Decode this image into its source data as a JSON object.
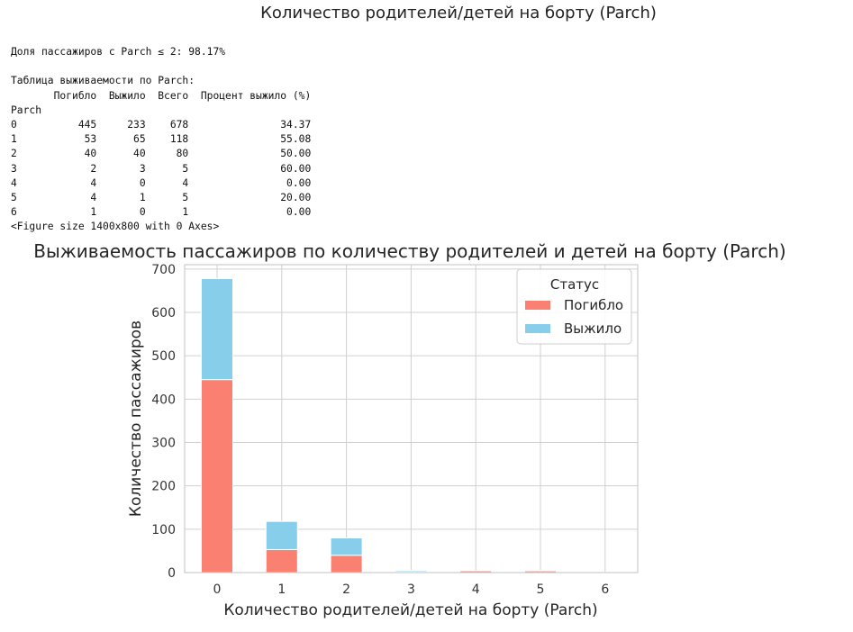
{
  "page_heading": "Количество родителей/детей на борту (Parch)",
  "output_lines": [
    "Доля пассажиров с Parch ≤ 2: 98.17%",
    "",
    "Таблица выживаемости по Parch:",
    "       Погибло  Выжило  Всего  Процент выжило (%)",
    "Parch",
    "0          445     233    678               34.37",
    "1           53      65    118               55.08",
    "2           40      40     80               50.00",
    "3            2       3      5               60.00",
    "4            4       0      4                0.00",
    "5            4       1      5               20.00",
    "6            1       0      1                0.00",
    "<Figure size 1400x800 with 0 Axes>"
  ],
  "colors": {
    "died": "#fa8072",
    "survived": "#87ceeb",
    "grid": "#d0d0d0",
    "axes_edge": "#cccccc"
  },
  "chart_data": {
    "type": "bar",
    "stacked": true,
    "title": "Выживаемость пассажиров по количеству родителей и детей на борту (Parch)",
    "xlabel": "Количество родителей/детей на борту (Parch)",
    "ylabel": "Количество пассажиров",
    "categories": [
      "0",
      "1",
      "2",
      "3",
      "4",
      "5",
      "6"
    ],
    "series": [
      {
        "name": "Погибло",
        "values": [
          445,
          53,
          40,
          2,
          4,
          4,
          1
        ]
      },
      {
        "name": "Выжило",
        "values": [
          233,
          65,
          40,
          3,
          0,
          1,
          0
        ]
      }
    ],
    "ylim": [
      0,
      710
    ],
    "yticks": [
      0,
      100,
      200,
      300,
      400,
      500,
      600,
      700
    ],
    "grid": true,
    "legend": {
      "title": "Статус",
      "position": "top-right"
    }
  }
}
